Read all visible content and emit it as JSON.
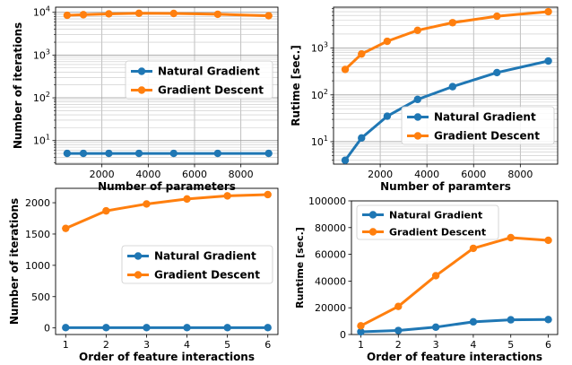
{
  "colors": {
    "natural": "#1f77b4",
    "gradient": "#ff7f0e"
  },
  "chart_data": [
    {
      "type": "line",
      "xlabel": "Number of parameters",
      "ylabel": "Number of iterations",
      "yscale": "log",
      "grid": true,
      "legend_position": "center-right",
      "x": [
        500,
        1200,
        2300,
        3600,
        5100,
        7000,
        9200
      ],
      "xticks": [
        "2000",
        "4000",
        "6000",
        "8000"
      ],
      "yticks": [
        "10^1",
        "10^2",
        "10^3",
        "10^4"
      ],
      "series": [
        {
          "name": "Natural Gradient",
          "values": [
            5,
            5,
            5,
            5,
            5,
            5,
            5
          ]
        },
        {
          "name": "Gradient Descent",
          "values": [
            8500,
            8800,
            9200,
            9500,
            9400,
            9000,
            8300
          ]
        }
      ]
    },
    {
      "type": "line",
      "xlabel": "Number of paramters",
      "ylabel": "Rutime [sec.]",
      "yscale": "log",
      "grid": true,
      "legend_position": "lower-right",
      "x": [
        500,
        1200,
        2300,
        3600,
        5100,
        7000,
        9200
      ],
      "xticks": [
        "2000",
        "4000",
        "6000",
        "8000"
      ],
      "yticks": [
        "10^1",
        "10^2",
        "10^3"
      ],
      "series": [
        {
          "name": "Natural Gradient",
          "values": [
            4,
            12,
            35,
            80,
            150,
            300,
            530
          ]
        },
        {
          "name": "Gradient Descent",
          "values": [
            350,
            750,
            1400,
            2400,
            3500,
            4800,
            6000
          ]
        }
      ]
    },
    {
      "type": "line",
      "xlabel": "Order of feature interactions",
      "ylabel": "Number of iterations",
      "grid": false,
      "legend_position": "center-right",
      "x": [
        1,
        2,
        3,
        4,
        5,
        6
      ],
      "xticks": [
        "1",
        "2",
        "3",
        "4",
        "5",
        "6"
      ],
      "yticks": [
        "0",
        "500",
        "1000",
        "1500",
        "2000"
      ],
      "series": [
        {
          "name": "Natural Gradient",
          "values": [
            5,
            5,
            5,
            5,
            5,
            5
          ]
        },
        {
          "name": "Gradient Descent",
          "values": [
            1590,
            1870,
            1980,
            2060,
            2110,
            2130
          ]
        }
      ]
    },
    {
      "type": "line",
      "xlabel": "Order of feature interactions",
      "ylabel": "Runtime [sec.]",
      "grid": false,
      "legend_position": "upper-left",
      "x": [
        1,
        2,
        3,
        4,
        5,
        6
      ],
      "xticks": [
        "1",
        "2",
        "3",
        "4",
        "5",
        "6"
      ],
      "yticks": [
        "0",
        "20000",
        "40000",
        "60000",
        "80000",
        "100000"
      ],
      "series": [
        {
          "name": "Natural Gradient",
          "values": [
            2000,
            3000,
            5500,
            9500,
            11000,
            11200
          ]
        },
        {
          "name": "Gradient Descent",
          "values": [
            6500,
            21000,
            44000,
            64500,
            72500,
            70500
          ]
        }
      ]
    }
  ]
}
